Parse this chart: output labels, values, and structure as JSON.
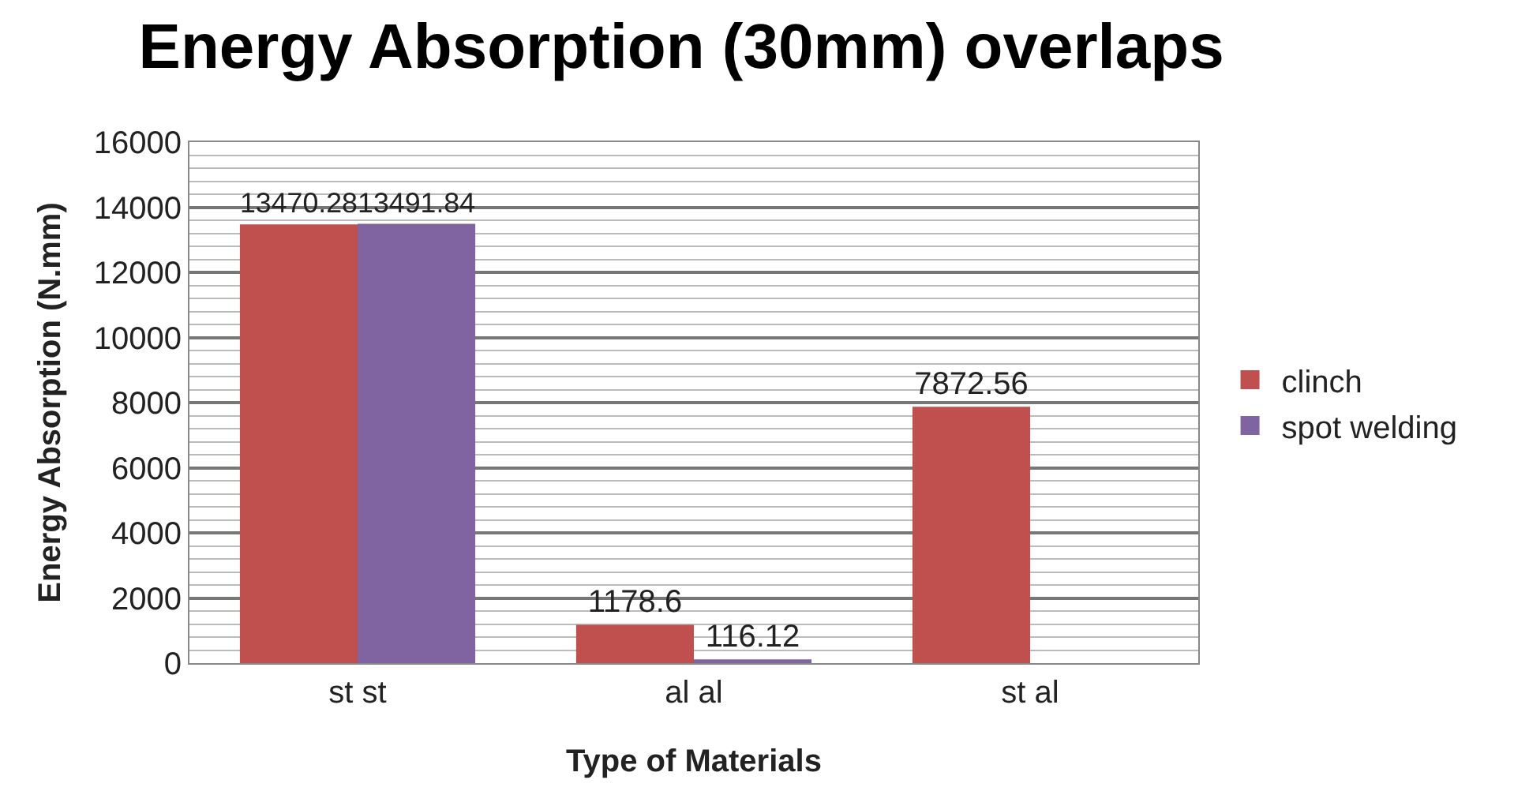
{
  "chart_data": {
    "type": "bar",
    "title": "Energy Absorption (30mm) overlaps",
    "xlabel": "Type of Materials",
    "ylabel": "Energy Absorption (N.mm)",
    "categories": [
      "st st",
      "al al",
      "st al"
    ],
    "series": [
      {
        "name": "clinch",
        "color": "#c0504d",
        "values": [
          13470.28,
          1178.6,
          7872.56
        ]
      },
      {
        "name": "spot welding",
        "color": "#8064a2",
        "values": [
          13491.84,
          116.12,
          null
        ]
      }
    ],
    "ylim": [
      0,
      16000
    ],
    "yticks": [
      0,
      2000,
      4000,
      6000,
      8000,
      10000,
      12000,
      14000,
      16000
    ],
    "grid": true,
    "legend": "right",
    "data_labels": true
  }
}
